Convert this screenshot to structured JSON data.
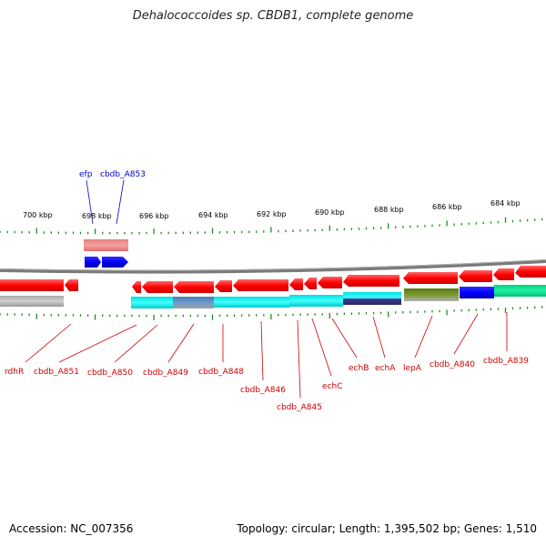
{
  "title": "Dehalococcoides sp. CBDB1, complete genome",
  "footer": {
    "accession": "Accession: NC_007356",
    "topology": "Topology: circular; Length: 1,395,502 bp; Genes: 1,510"
  },
  "colors": {
    "tick": "#228b22",
    "forward_label": "#0000cc",
    "reverse_label": "#cc0000",
    "backbone": "#808080"
  },
  "scale_labels": [
    "700 kbp",
    "698 kbp",
    "696 kbp",
    "694 kbp",
    "692 kbp",
    "690 kbp",
    "688 kbp",
    "686 kbp",
    "684 kbp"
  ],
  "forward_gene_labels": [
    "efp",
    "cbdb_A853"
  ],
  "reverse_gene_labels": [
    "rdhR",
    "cbdb_A851",
    "cbdb_A850",
    "cbdb_A849",
    "cbdb_A848",
    "cbdb_A846",
    "cbdb_A845",
    "echC",
    "echB",
    "echA",
    "lepA",
    "cbdb_A840",
    "cbdb_A839"
  ]
}
